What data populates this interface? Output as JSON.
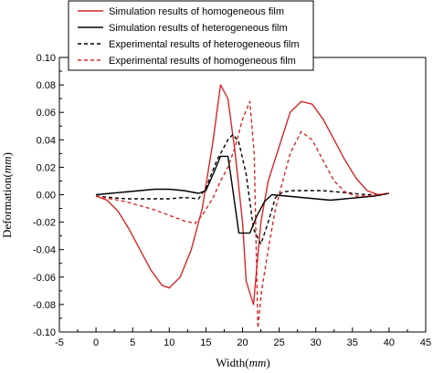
{
  "chart_data": {
    "type": "line",
    "xlabel": "Width(mm)",
    "xlabel_parts": {
      "prefix": "Width(",
      "unit": "mm",
      "suffix": ")"
    },
    "ylabel": "Deformation(mm)",
    "ylabel_parts": {
      "prefix": "Deformation(",
      "unit": "mm",
      "suffix": ")"
    },
    "xlim": [
      -5,
      45
    ],
    "ylim": [
      -0.1,
      0.1
    ],
    "x_ticks": [
      "-5",
      "0",
      "5",
      "10",
      "15",
      "20",
      "25",
      "30",
      "35",
      "40",
      "45"
    ],
    "y_ticks": [
      "-0.10",
      "-0.08",
      "-0.06",
      "-0.04",
      "-0.02",
      "0.00",
      "0.02",
      "0.04",
      "0.06",
      "0.08",
      "0.10"
    ],
    "grid": false,
    "legend_position": "top-center",
    "series": [
      {
        "name": "Simulation results of homogeneous film",
        "color": "#d62728",
        "style": "solid",
        "points": [
          [
            0,
            -0.001
          ],
          [
            1.5,
            -0.004
          ],
          [
            3,
            -0.012
          ],
          [
            4.5,
            -0.025
          ],
          [
            6,
            -0.04
          ],
          [
            7.5,
            -0.055
          ],
          [
            9,
            -0.066
          ],
          [
            10,
            -0.068
          ],
          [
            11.5,
            -0.06
          ],
          [
            13,
            -0.04
          ],
          [
            14.5,
            -0.01
          ],
          [
            16,
            0.04
          ],
          [
            17,
            0.08
          ],
          [
            18,
            0.07
          ],
          [
            19,
            0.03
          ],
          [
            20,
            -0.02
          ],
          [
            20.5,
            -0.063
          ],
          [
            21.5,
            -0.08
          ],
          [
            22.5,
            -0.02
          ],
          [
            23.5,
            0.01
          ],
          [
            25,
            0.035
          ],
          [
            26.5,
            0.06
          ],
          [
            28,
            0.068
          ],
          [
            29.5,
            0.066
          ],
          [
            31,
            0.055
          ],
          [
            32.5,
            0.04
          ],
          [
            34,
            0.025
          ],
          [
            35.5,
            0.012
          ],
          [
            37,
            0.003
          ],
          [
            38.5,
            0.0
          ],
          [
            40,
            0.001
          ]
        ]
      },
      {
        "name": "Simulation results of heterogeneous film",
        "color": "#000000",
        "style": "solid",
        "points": [
          [
            0,
            0.0
          ],
          [
            2,
            0.001
          ],
          [
            4,
            0.002
          ],
          [
            6,
            0.003
          ],
          [
            8,
            0.004
          ],
          [
            10,
            0.004
          ],
          [
            12,
            0.003
          ],
          [
            14,
            0.001
          ],
          [
            15,
            0.003
          ],
          [
            16,
            0.015
          ],
          [
            17,
            0.028
          ],
          [
            18,
            0.028
          ],
          [
            18.5,
            0.01
          ],
          [
            19.5,
            -0.028
          ],
          [
            21,
            -0.028
          ],
          [
            22,
            -0.015
          ],
          [
            23,
            -0.005
          ],
          [
            24,
            0.0
          ],
          [
            26,
            -0.001
          ],
          [
            28,
            -0.002
          ],
          [
            30,
            -0.003
          ],
          [
            32,
            -0.004
          ],
          [
            34,
            -0.003
          ],
          [
            36,
            -0.002
          ],
          [
            38,
            -0.001
          ],
          [
            40,
            0.001
          ]
        ]
      },
      {
        "name": "Experimental results of heterogeneous film",
        "color": "#000000",
        "style": "dashed",
        "points": [
          [
            0,
            -0.001
          ],
          [
            2,
            -0.002
          ],
          [
            4,
            -0.003
          ],
          [
            6,
            -0.003
          ],
          [
            8,
            -0.003
          ],
          [
            10,
            -0.003
          ],
          [
            12,
            -0.002
          ],
          [
            14,
            -0.003
          ],
          [
            15,
            0.005
          ],
          [
            16.5,
            0.025
          ],
          [
            18,
            0.04
          ],
          [
            18.7,
            0.044
          ],
          [
            19.5,
            0.038
          ],
          [
            20.5,
            0.015
          ],
          [
            21.5,
            -0.025
          ],
          [
            22.5,
            -0.036
          ],
          [
            23.5,
            -0.02
          ],
          [
            24.5,
            -0.002
          ],
          [
            25.5,
            0.002
          ],
          [
            27,
            0.003
          ],
          [
            29,
            0.003
          ],
          [
            31,
            0.003
          ],
          [
            33,
            0.002
          ],
          [
            35,
            0.001
          ],
          [
            37,
            0.0
          ],
          [
            39,
            0.0
          ],
          [
            40,
            0.001
          ]
        ]
      },
      {
        "name": "Experimental results of homogeneous film",
        "color": "#d62728",
        "style": "dashed",
        "points": [
          [
            0,
            -0.001
          ],
          [
            2,
            -0.003
          ],
          [
            4,
            -0.005
          ],
          [
            6,
            -0.008
          ],
          [
            8,
            -0.011
          ],
          [
            10,
            -0.015
          ],
          [
            12,
            -0.019
          ],
          [
            13.5,
            -0.021
          ],
          [
            14.5,
            -0.015
          ],
          [
            16,
            -0.002
          ],
          [
            17,
            0.01
          ],
          [
            18,
            0.02
          ],
          [
            19,
            0.035
          ],
          [
            20,
            0.055
          ],
          [
            21,
            0.068
          ],
          [
            21.6,
            0.03
          ],
          [
            22.1,
            -0.097
          ],
          [
            22.6,
            -0.07
          ],
          [
            23.5,
            -0.04
          ],
          [
            24.5,
            -0.01
          ],
          [
            25.5,
            0.01
          ],
          [
            26.5,
            0.03
          ],
          [
            28,
            0.046
          ],
          [
            29.5,
            0.04
          ],
          [
            31,
            0.025
          ],
          [
            32.5,
            0.01
          ],
          [
            34,
            0.002
          ],
          [
            35.5,
            -0.001
          ],
          [
            37,
            -0.001
          ],
          [
            38.5,
            0.0
          ],
          [
            40,
            0.001
          ]
        ]
      }
    ]
  }
}
